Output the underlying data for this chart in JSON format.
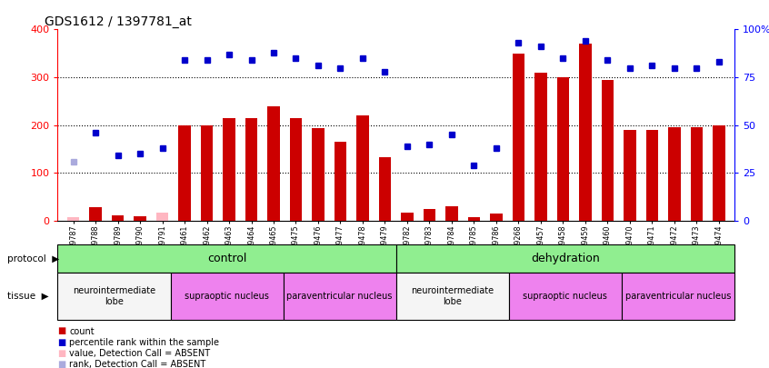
{
  "title": "GDS1612 / 1397781_at",
  "samples": [
    "GSM69787",
    "GSM69788",
    "GSM69789",
    "GSM69790",
    "GSM69791",
    "GSM69461",
    "GSM69462",
    "GSM69463",
    "GSM69464",
    "GSM69465",
    "GSM69475",
    "GSM69476",
    "GSM69477",
    "GSM69478",
    "GSM69479",
    "GSM69782",
    "GSM69783",
    "GSM69784",
    "GSM69785",
    "GSM69786",
    "GSM69268",
    "GSM69457",
    "GSM69458",
    "GSM69459",
    "GSM69460",
    "GSM69470",
    "GSM69471",
    "GSM69472",
    "GSM69473",
    "GSM69474"
  ],
  "bar_values": [
    8,
    28,
    12,
    10,
    18,
    200,
    200,
    215,
    215,
    240,
    215,
    193,
    165,
    220,
    133,
    18,
    25,
    30,
    8,
    15,
    350,
    310,
    300,
    370,
    295,
    190,
    190,
    195,
    195,
    200
  ],
  "bar_absent": [
    true,
    false,
    false,
    false,
    true,
    false,
    false,
    false,
    false,
    false,
    false,
    false,
    false,
    false,
    false,
    false,
    false,
    false,
    false,
    false,
    false,
    false,
    false,
    false,
    false,
    false,
    false,
    false,
    false,
    false
  ],
  "rank_values_pct": [
    31,
    46,
    34,
    35,
    38,
    84,
    84,
    87,
    84,
    88,
    85,
    81,
    80,
    85,
    78,
    39,
    40,
    45,
    29,
    38,
    93,
    91,
    85,
    94,
    84,
    80,
    81,
    80,
    80,
    83
  ],
  "rank_absent": [
    true,
    false,
    false,
    false,
    false,
    false,
    false,
    false,
    false,
    false,
    false,
    false,
    false,
    false,
    false,
    false,
    false,
    false,
    false,
    false,
    false,
    false,
    false,
    false,
    false,
    false,
    false,
    false,
    false,
    false
  ],
  "protocol_groups": [
    {
      "label": "control",
      "start": 0,
      "end": 14,
      "color": "#90EE90"
    },
    {
      "label": "dehydration",
      "start": 15,
      "end": 29,
      "color": "#90EE90"
    }
  ],
  "tissue_groups": [
    {
      "label": "neurointermediate\nlobe",
      "start": 0,
      "end": 4,
      "color": "#ffffff"
    },
    {
      "label": "supraoptic nucleus",
      "start": 5,
      "end": 9,
      "color": "#EE82EE"
    },
    {
      "label": "paraventricular nucleus",
      "start": 10,
      "end": 14,
      "color": "#EE82EE"
    },
    {
      "label": "neurointermediate\nlobe",
      "start": 15,
      "end": 19,
      "color": "#ffffff"
    },
    {
      "label": "supraoptic nucleus",
      "start": 20,
      "end": 24,
      "color": "#EE82EE"
    },
    {
      "label": "paraventricular nucleus",
      "start": 25,
      "end": 29,
      "color": "#EE82EE"
    }
  ],
  "bar_color": "#CC0000",
  "bar_absent_color": "#FFB6C1",
  "rank_color": "#0000CC",
  "rank_absent_color": "#AAAADD",
  "ylim_left": [
    0,
    400
  ],
  "ylim_right": [
    0,
    100
  ],
  "yticks_left": [
    0,
    100,
    200,
    300,
    400
  ],
  "yticks_right": [
    0,
    25,
    50,
    75,
    100
  ]
}
